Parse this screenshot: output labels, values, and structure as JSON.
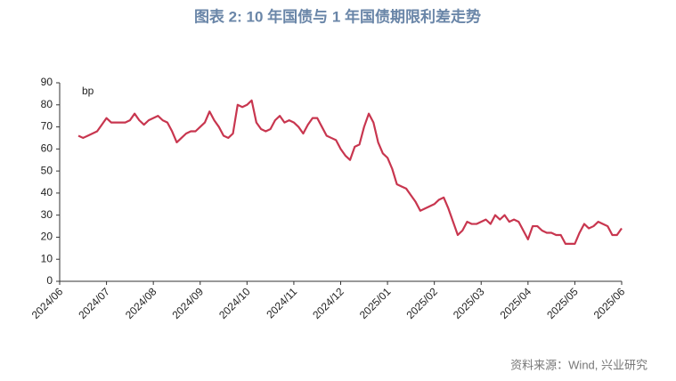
{
  "chart_data": {
    "type": "line",
    "title": "图表 2:  10 年国债与 1 年国债期限利差走势",
    "y_label": "bp",
    "source": "资料来源：Wind, 兴业研究",
    "color": "#c8364f",
    "ylim": [
      0,
      90
    ],
    "yticks": [
      0,
      10,
      20,
      30,
      40,
      50,
      60,
      70,
      80,
      90
    ],
    "categories": [
      "2024/06",
      null,
      null,
      null,
      null,
      null,
      null,
      null,
      null,
      null,
      "2024/07",
      null,
      null,
      null,
      null,
      null,
      null,
      null,
      null,
      null,
      "2024/08",
      null,
      null,
      null,
      null,
      null,
      null,
      null,
      null,
      null,
      "2024/09",
      null,
      null,
      null,
      null,
      null,
      null,
      null,
      null,
      null,
      "2024/10",
      null,
      null,
      null,
      null,
      null,
      null,
      null,
      null,
      null,
      "2024/11",
      null,
      null,
      null,
      null,
      null,
      null,
      null,
      null,
      null,
      "2024/12",
      null,
      null,
      null,
      null,
      null,
      null,
      null,
      null,
      null,
      "2025/01",
      null,
      null,
      null,
      null,
      null,
      null,
      null,
      null,
      null,
      "2025/02",
      null,
      null,
      null,
      null,
      null,
      null,
      null,
      null,
      null,
      "2025/03",
      null,
      null,
      null,
      null,
      null,
      null,
      null,
      null,
      null,
      "2025/04",
      null,
      null,
      null,
      null,
      null,
      null,
      null,
      null,
      null,
      "2025/05",
      null,
      null,
      null,
      null,
      null,
      null,
      null,
      null,
      null,
      "2025/06"
    ],
    "values": [
      null,
      null,
      null,
      null,
      66,
      65,
      66,
      67,
      68,
      71,
      74,
      72,
      72,
      72,
      72,
      73,
      76,
      73,
      71,
      73,
      74,
      75,
      73,
      72,
      68,
      63,
      65,
      67,
      68,
      68,
      70,
      72,
      77,
      73,
      70,
      66,
      65,
      67,
      80,
      79,
      80,
      82,
      72,
      69,
      68,
      69,
      73,
      75,
      72,
      73,
      72,
      70,
      67,
      71,
      74,
      74,
      70,
      66,
      65,
      64,
      60,
      57,
      55,
      61,
      62,
      70,
      76,
      72,
      63,
      58,
      56,
      51,
      44,
      43,
      42,
      39,
      36,
      32,
      33,
      34,
      35,
      37,
      38,
      33,
      27,
      21,
      23,
      27,
      26,
      26,
      27,
      28,
      26,
      30,
      28,
      30,
      27,
      28,
      27,
      23,
      19,
      25,
      25,
      23,
      22,
      22,
      21,
      21,
      17,
      17,
      17,
      22,
      26,
      24,
      25,
      27,
      26,
      25,
      21,
      21,
      24
    ]
  }
}
